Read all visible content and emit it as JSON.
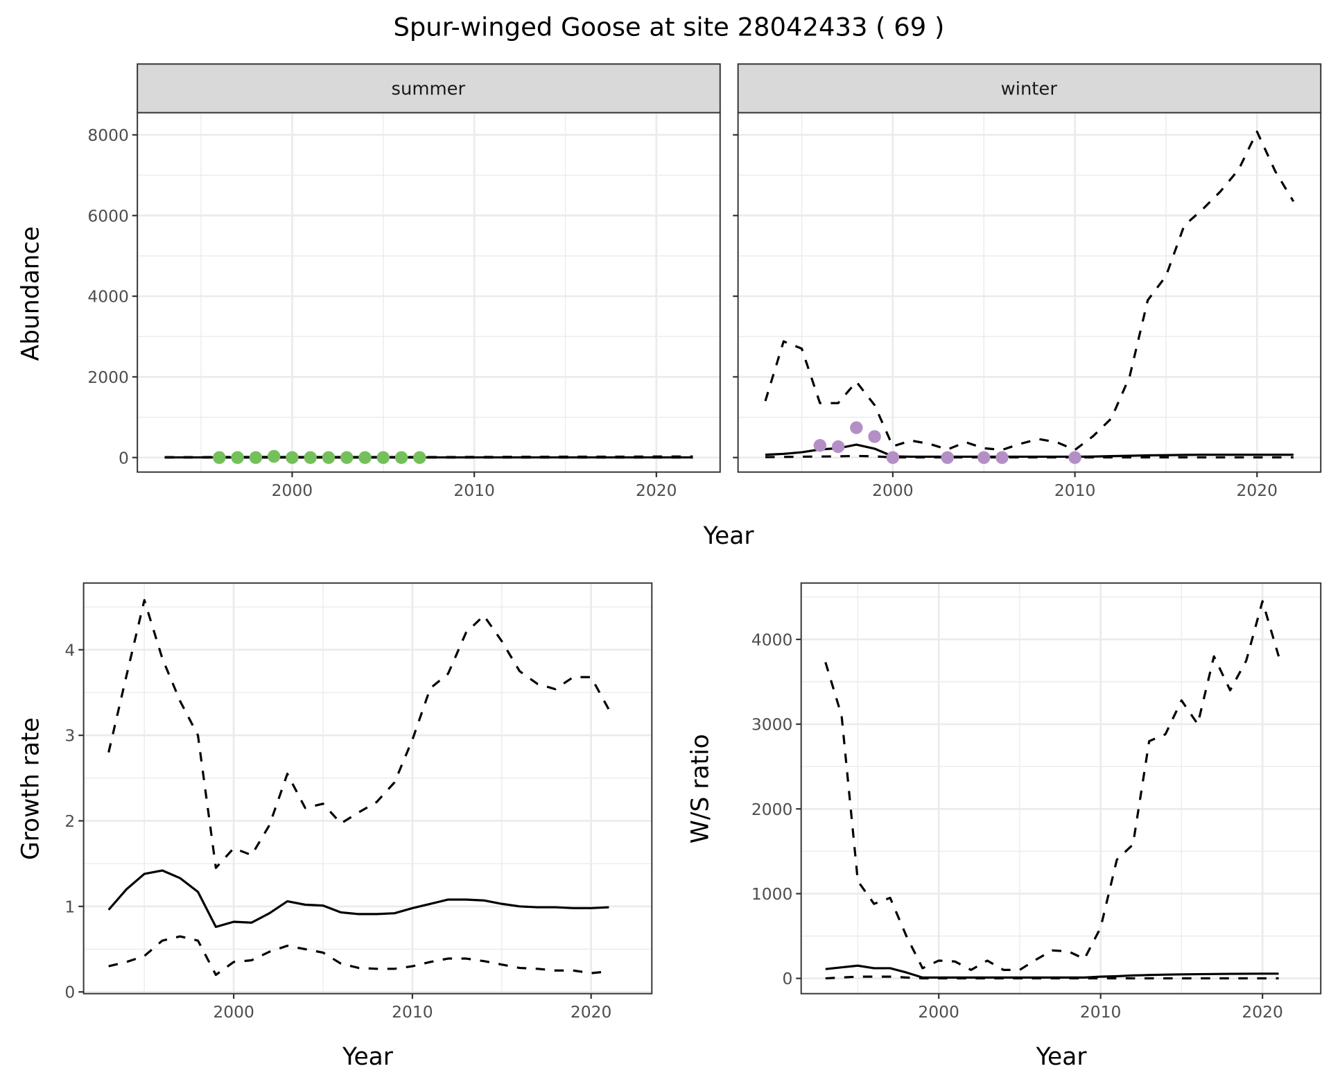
{
  "title": "Spur-winged Goose at site 28042433 ( 69 )",
  "colors": {
    "summer_points": "#74c05a",
    "winter_points": "#b48fc6",
    "lines": "#000000",
    "strip": "#d9d9d9",
    "grid": "#ebebeb"
  },
  "chart_data": [
    {
      "type": "line",
      "facet": "summer",
      "xlabel": "Year",
      "ylabel": "Abundance",
      "xlim": [
        1991.5,
        2023.5
      ],
      "ylim": [
        -360,
        8550
      ],
      "xticks": [
        2000,
        2010,
        2020
      ],
      "yticks": [
        0,
        2000,
        4000,
        6000,
        8000
      ],
      "grid": true,
      "x": [
        1993,
        1994,
        1995,
        1996,
        1997,
        1998,
        1999,
        2000,
        2001,
        2002,
        2003,
        2004,
        2005,
        2006,
        2007,
        2008,
        2009,
        2010,
        2011,
        2012,
        2013,
        2014,
        2015,
        2016,
        2017,
        2018,
        2019,
        2020,
        2021,
        2022
      ],
      "series": [
        {
          "style": "solid",
          "values": [
            5,
            5,
            5,
            5,
            5,
            5,
            5,
            5,
            5,
            5,
            5,
            5,
            5,
            5,
            5,
            5,
            5,
            5,
            5,
            5,
            5,
            5,
            5,
            5,
            5,
            5,
            5,
            5,
            5,
            5
          ]
        },
        {
          "style": "dashed",
          "values": [
            10,
            10,
            10,
            12,
            12,
            15,
            15,
            12,
            12,
            12,
            12,
            12,
            12,
            12,
            12,
            12,
            12,
            14,
            15,
            16,
            18,
            18,
            20,
            20,
            22,
            22,
            24,
            25,
            25,
            25
          ]
        },
        {
          "style": "dashed",
          "values": [
            0,
            0,
            0,
            0,
            0,
            0,
            0,
            0,
            0,
            0,
            0,
            0,
            0,
            0,
            0,
            0,
            0,
            0,
            0,
            0,
            0,
            0,
            0,
            0,
            0,
            0,
            0,
            0,
            0,
            0
          ]
        }
      ],
      "points": {
        "x": [
          1996,
          1997,
          1998,
          1999,
          2000,
          2001,
          2002,
          2003,
          2004,
          2005,
          2006,
          2007
        ],
        "y": [
          0,
          0,
          0,
          30,
          0,
          0,
          0,
          0,
          0,
          0,
          0,
          0
        ]
      }
    },
    {
      "type": "line",
      "facet": "winter",
      "xlabel": "Year",
      "xlim": [
        1991.5,
        2023.5
      ],
      "ylim": [
        -360,
        8550
      ],
      "xticks": [
        2000,
        2010,
        2020
      ],
      "yticks": [
        0,
        2000,
        4000,
        6000,
        8000
      ],
      "grid": true,
      "x": [
        1993,
        1994,
        1995,
        1996,
        1997,
        1998,
        1999,
        2000,
        2001,
        2002,
        2003,
        2004,
        2005,
        2006,
        2007,
        2008,
        2009,
        2010,
        2011,
        2012,
        2013,
        2014,
        2015,
        2016,
        2017,
        2018,
        2019,
        2020,
        2021,
        2022
      ],
      "series": [
        {
          "style": "solid",
          "values": [
            70,
            90,
            130,
            200,
            230,
            320,
            220,
            30,
            20,
            20,
            20,
            20,
            20,
            20,
            20,
            20,
            20,
            20,
            25,
            35,
            45,
            55,
            60,
            65,
            70,
            70,
            70,
            70,
            70,
            70
          ]
        },
        {
          "style": "dashed",
          "values": [
            1400,
            2880,
            2700,
            1350,
            1350,
            1880,
            1300,
            280,
            420,
            340,
            200,
            380,
            230,
            190,
            340,
            460,
            380,
            190,
            530,
            970,
            2000,
            3900,
            4500,
            5750,
            6150,
            6600,
            7150,
            8080,
            7100,
            6350
          ]
        },
        {
          "style": "dashed",
          "values": [
            10,
            15,
            20,
            25,
            30,
            40,
            30,
            5,
            3,
            3,
            3,
            3,
            3,
            3,
            3,
            3,
            3,
            3,
            3,
            3,
            3,
            3,
            3,
            3,
            3,
            3,
            3,
            3,
            3,
            3
          ]
        }
      ],
      "points": {
        "x": [
          1996,
          1997,
          1998,
          1999,
          2000,
          2003,
          2005,
          2006,
          2010
        ],
        "y": [
          300,
          270,
          740,
          520,
          0,
          0,
          0,
          0,
          0
        ]
      }
    },
    {
      "type": "line",
      "xlabel": "Year",
      "ylabel": "Growth rate",
      "xlim": [
        1991.6,
        2023.4
      ],
      "ylim": [
        -0.02,
        4.78
      ],
      "xticks": [
        2000,
        2010,
        2020
      ],
      "yticks": [
        0,
        1,
        2,
        3,
        4
      ],
      "grid": true,
      "x": [
        1993,
        1994,
        1995,
        1996,
        1997,
        1998,
        1999,
        2000,
        2001,
        2002,
        2003,
        2004,
        2005,
        2006,
        2007,
        2008,
        2009,
        2010,
        2011,
        2012,
        2013,
        2014,
        2015,
        2016,
        2017,
        2018,
        2019,
        2020,
        2021
      ],
      "series": [
        {
          "style": "solid",
          "values": [
            0.96,
            1.2,
            1.38,
            1.42,
            1.33,
            1.17,
            0.76,
            0.82,
            0.81,
            0.92,
            1.06,
            1.02,
            1.01,
            0.93,
            0.91,
            0.91,
            0.92,
            0.98,
            1.03,
            1.08,
            1.08,
            1.07,
            1.03,
            1.0,
            0.99,
            0.99,
            0.98,
            0.98,
            0.99
          ]
        },
        {
          "style": "dashed",
          "values": [
            2.8,
            3.7,
            4.58,
            3.9,
            3.4,
            3.0,
            1.45,
            1.68,
            1.6,
            1.95,
            2.55,
            2.15,
            2.2,
            1.97,
            2.1,
            2.22,
            2.45,
            2.95,
            3.55,
            3.72,
            4.2,
            4.4,
            4.1,
            3.75,
            3.6,
            3.54,
            3.68,
            3.68,
            3.3
          ]
        },
        {
          "style": "dashed",
          "values": [
            0.3,
            0.35,
            0.42,
            0.6,
            0.65,
            0.6,
            0.2,
            0.35,
            0.37,
            0.47,
            0.54,
            0.5,
            0.46,
            0.33,
            0.28,
            0.27,
            0.27,
            0.3,
            0.35,
            0.39,
            0.39,
            0.36,
            0.32,
            0.28,
            0.27,
            0.25,
            0.25,
            0.22,
            0.24
          ]
        }
      ]
    },
    {
      "type": "line",
      "xlabel": "Year",
      "ylabel": "W/S ratio",
      "xlim": [
        1991.5,
        2023.6
      ],
      "ylim": [
        -180,
        4665
      ],
      "xticks": [
        2000,
        2010,
        2020
      ],
      "yticks": [
        0,
        1000,
        2000,
        3000,
        4000
      ],
      "grid": true,
      "x": [
        1993,
        1994,
        1995,
        1996,
        1997,
        1998,
        1999,
        2000,
        2001,
        2002,
        2003,
        2004,
        2005,
        2006,
        2007,
        2008,
        2009,
        2010,
        2011,
        2012,
        2013,
        2014,
        2015,
        2016,
        2017,
        2018,
        2019,
        2020,
        2021
      ],
      "series": [
        {
          "style": "solid",
          "values": [
            110,
            130,
            150,
            120,
            120,
            70,
            10,
            10,
            10,
            10,
            10,
            10,
            10,
            10,
            10,
            10,
            10,
            20,
            25,
            35,
            40,
            45,
            48,
            50,
            52,
            54,
            55,
            56,
            56
          ]
        },
        {
          "style": "dashed",
          "values": [
            3730,
            3100,
            1150,
            880,
            950,
            500,
            120,
            210,
            200,
            100,
            210,
            100,
            100,
            220,
            330,
            320,
            230,
            600,
            1400,
            1580,
            2800,
            2880,
            3280,
            3000,
            3800,
            3400,
            3750,
            4450,
            3800
          ]
        },
        {
          "style": "dashed",
          "values": [
            0,
            10,
            20,
            20,
            20,
            10,
            0,
            0,
            0,
            0,
            0,
            0,
            0,
            0,
            0,
            0,
            0,
            0,
            0,
            0,
            0,
            0,
            0,
            0,
            0,
            0,
            0,
            0,
            0
          ]
        }
      ]
    }
  ]
}
